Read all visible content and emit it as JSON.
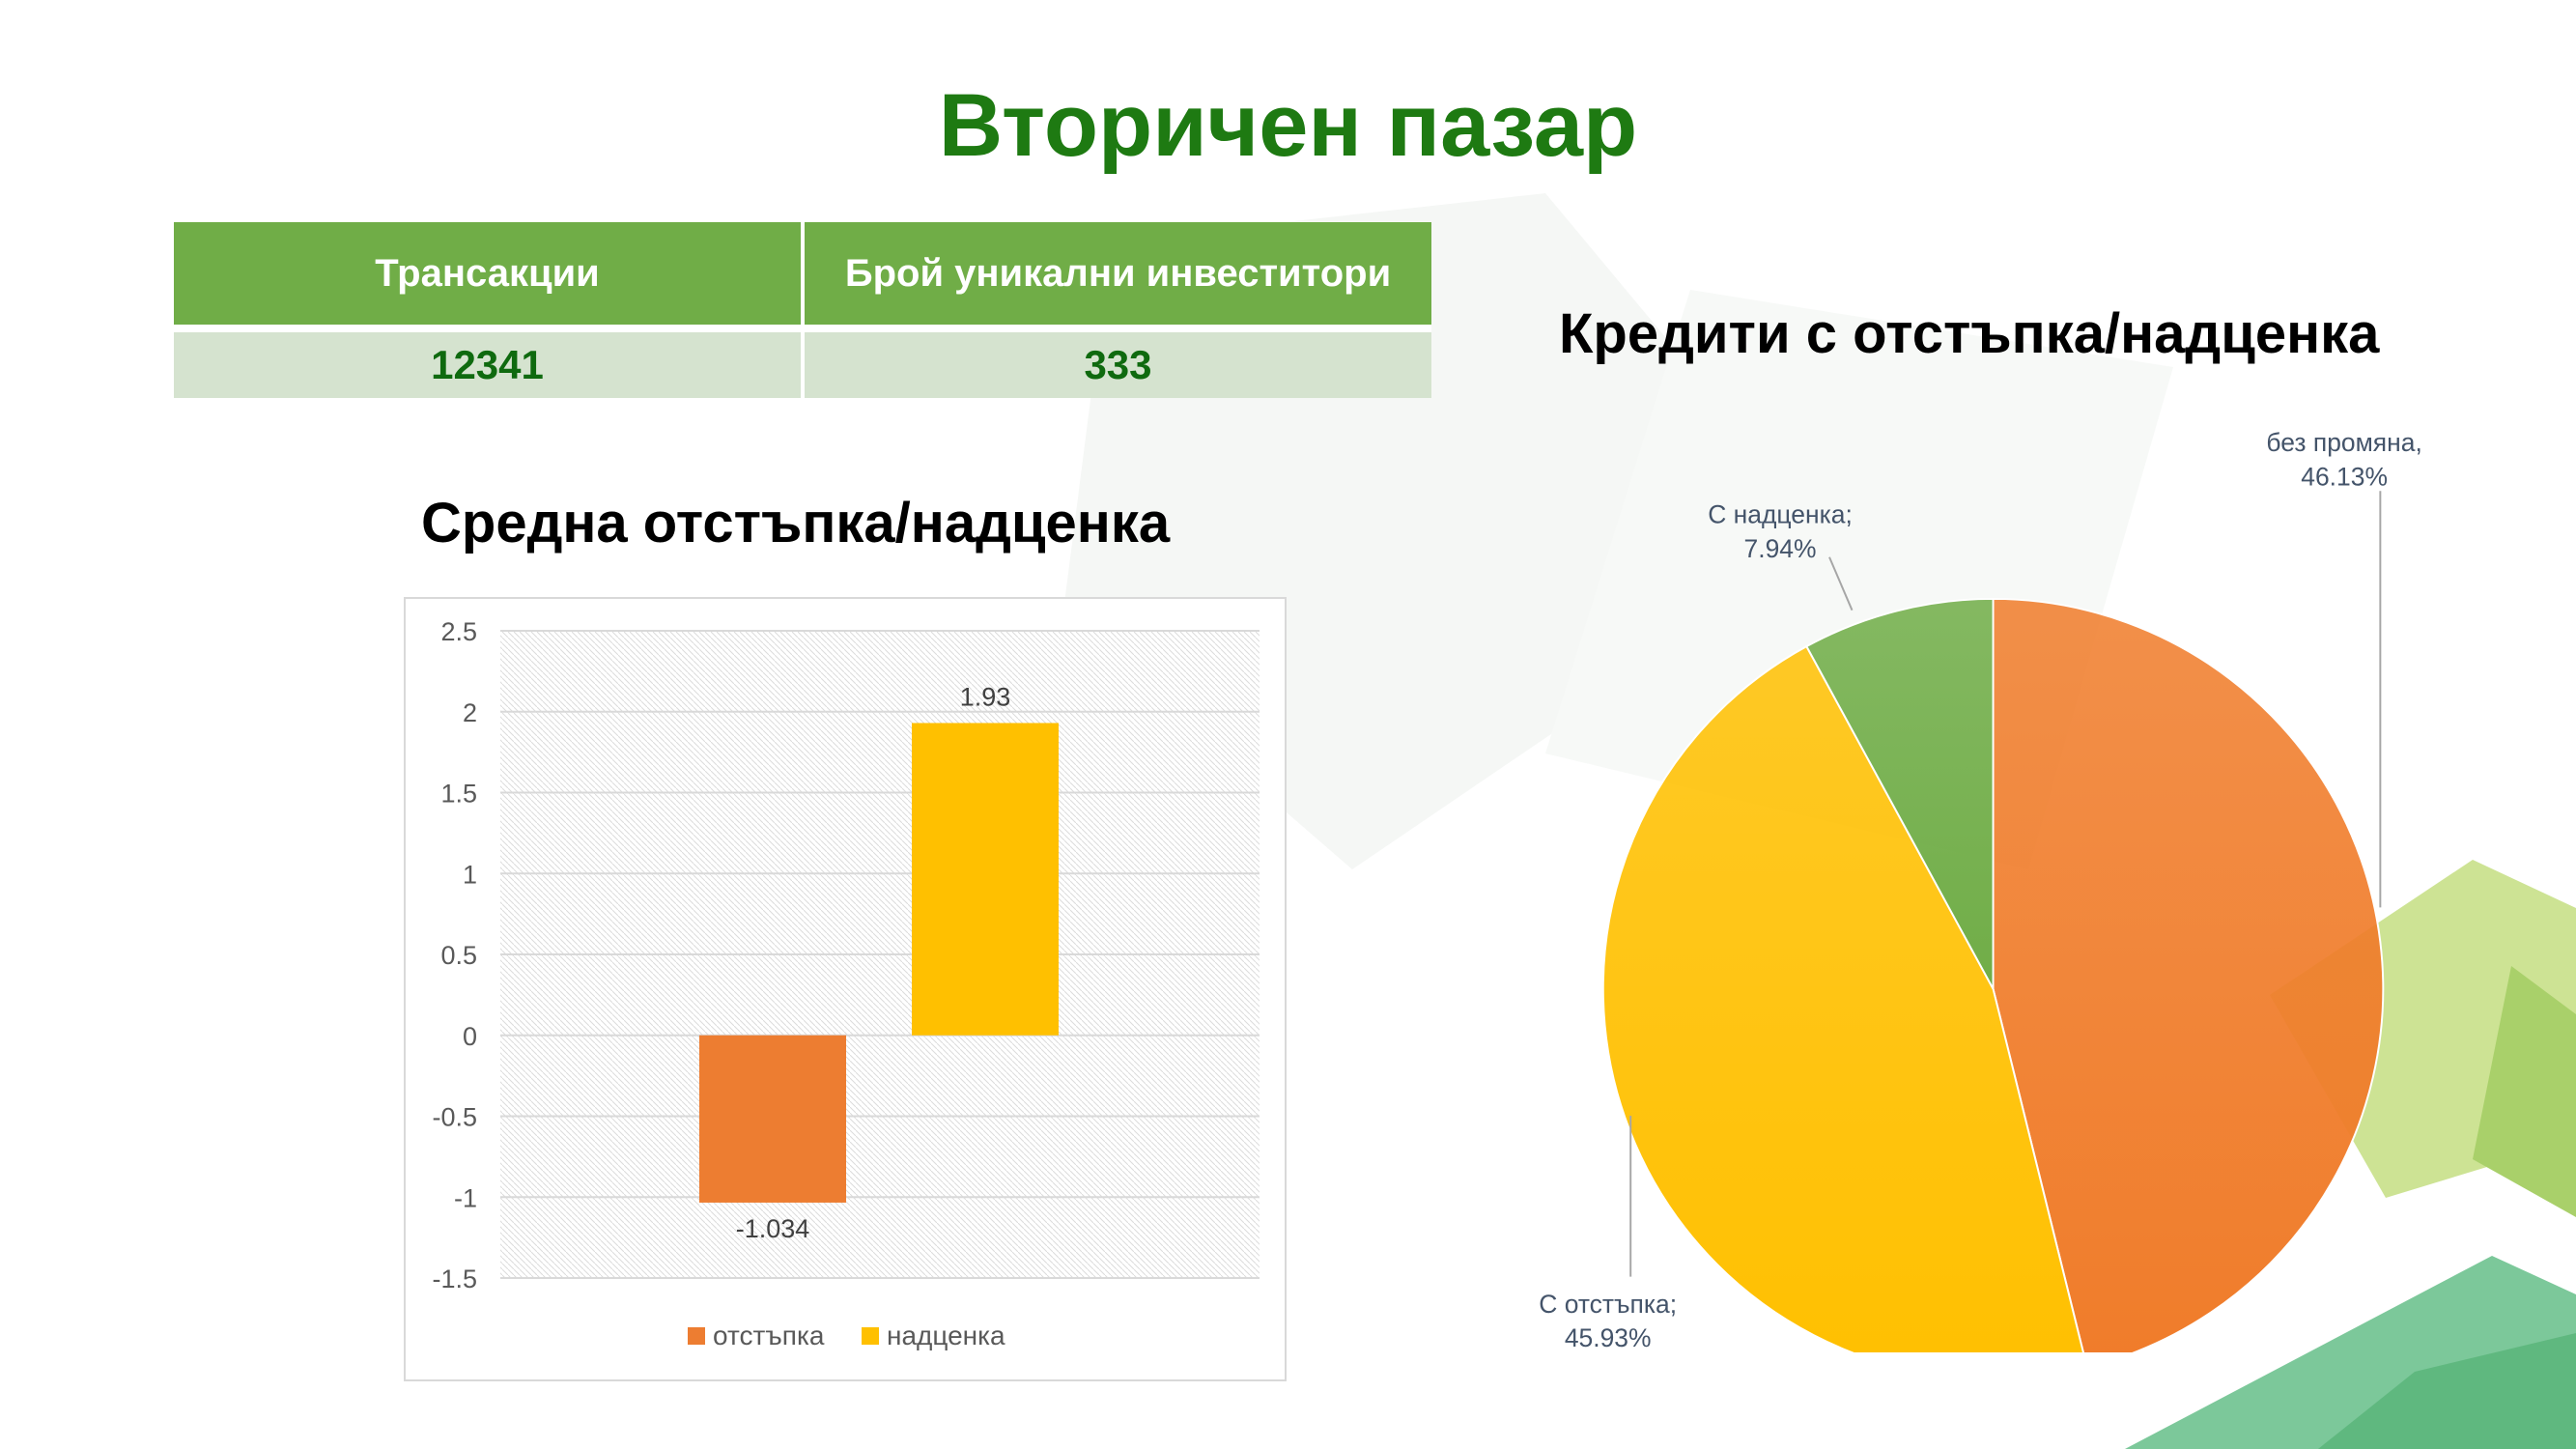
{
  "page": {
    "title": "Вторичен пазар"
  },
  "stats_table": {
    "headers": [
      "Трансакции",
      "Брой уникални инвеститори"
    ],
    "values": [
      "12341",
      "333"
    ]
  },
  "colors": {
    "title": "#1e7a12",
    "table_header": "#70ad47",
    "table_row": "#d5e3cf",
    "discount": "#ed7d31",
    "premium": "#ffc000",
    "no_change": "#f07c2a",
    "premium_slice": "#70ad47"
  },
  "chart_data": [
    {
      "type": "bar",
      "title": "Средна отстъпка/надценка",
      "categories": [
        ""
      ],
      "series": [
        {
          "name": "отстъпка",
          "values": [
            -1.034
          ],
          "color": "#ed7d31",
          "label": "-1.034"
        },
        {
          "name": "надценка",
          "values": [
            1.93
          ],
          "color": "#ffc000",
          "label": "1.93"
        }
      ],
      "ylim": [
        -1.5,
        2.5
      ],
      "yticks": [
        "2.5",
        "2",
        "1.5",
        "1",
        "0.5",
        "0",
        "-0.5",
        "-1",
        "-1.5"
      ],
      "ytick_values": [
        2.5,
        2,
        1.5,
        1,
        0.5,
        0,
        -0.5,
        -1,
        -1.5
      ],
      "grid": true,
      "legend": "bottom"
    },
    {
      "type": "pie",
      "title": "Кредити с отстъпка/надценка",
      "slices": [
        {
          "name": "без промяна",
          "value": 46.13,
          "label_name": "без промяна,",
          "label_value": "46.13%",
          "color": "#f07c2a"
        },
        {
          "name": "С отстъпка",
          "value": 45.93,
          "label_name": "С отстъпка;",
          "label_value": "45.93%",
          "color": "#ffc000"
        },
        {
          "name": "С надценка",
          "value": 7.94,
          "label_name": "С надценка;",
          "label_value": "7.94%",
          "color": "#70ad47"
        }
      ],
      "legend": "none"
    }
  ]
}
